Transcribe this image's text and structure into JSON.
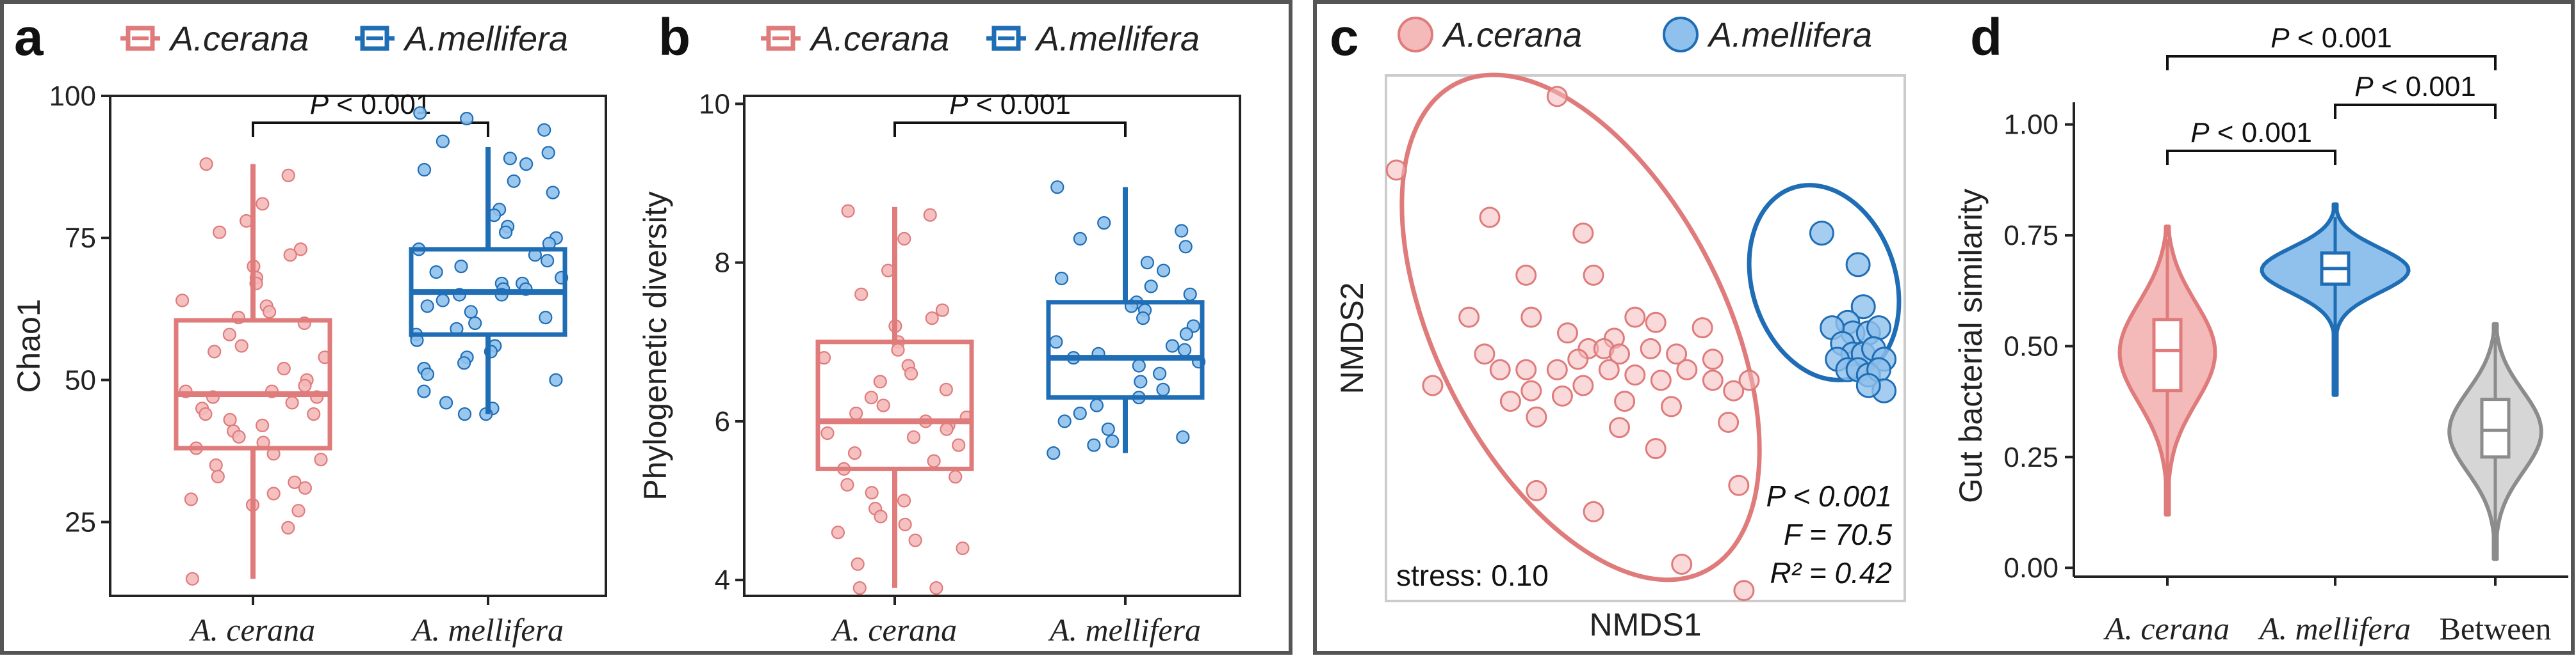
{
  "colors": {
    "cerana": "#e07b7b",
    "cerana_fill": "#f4b9b9",
    "mellifera": "#1f6db5",
    "mellifera_fill": "#8fc1ec",
    "between": "#8c8c8c",
    "between_fill": "#d6d6d6",
    "frame": "#555555"
  },
  "panels": {
    "a": {
      "label": "a"
    },
    "b": {
      "label": "b"
    },
    "c": {
      "label": "c"
    },
    "d": {
      "label": "d"
    }
  },
  "legend": {
    "cerana": "A.cerana",
    "mellifera": "A.mellifera"
  },
  "chart_data": [
    {
      "panel": "a",
      "type": "box",
      "ylabel": "Chao1",
      "categories": [
        "A. cerana",
        "A. mellifera"
      ],
      "ylim": [
        12,
        100
      ],
      "yticks": [
        25,
        50,
        75,
        100
      ],
      "significance": [
        "P < 0.001"
      ],
      "boxes": [
        {
          "name": "A.cerana",
          "whisker_low": 15,
          "q1": 38,
          "median": 47.5,
          "q3": 60.5,
          "whisker_high": 88
        },
        {
          "name": "A.mellifera",
          "whisker_low": 44,
          "q1": 58,
          "median": 65.5,
          "q3": 73,
          "whisker_high": 91
        }
      ],
      "points": [
        [
          88,
          86,
          81,
          78,
          76,
          73,
          72,
          70,
          68,
          67,
          64,
          63,
          62,
          61,
          60,
          58,
          56,
          55,
          54,
          52,
          50,
          49,
          48,
          48,
          47,
          47,
          46,
          45,
          44,
          44,
          43,
          42,
          41,
          40,
          39,
          38,
          37,
          36,
          35,
          33,
          32,
          31,
          30,
          29,
          28,
          27,
          24,
          15
        ],
        [
          97,
          96,
          94,
          92,
          90,
          89,
          88,
          87,
          85,
          83,
          80,
          79,
          77,
          76,
          75,
          74,
          73,
          72,
          71,
          70,
          69,
          68,
          67,
          67,
          66,
          66,
          65,
          65,
          64,
          63,
          62,
          61,
          60,
          59,
          58,
          57,
          56,
          55,
          54,
          53,
          52,
          51,
          50,
          48,
          46,
          45,
          44,
          44
        ]
      ]
    },
    {
      "panel": "b",
      "type": "box",
      "ylabel": "Phylogenetic diversity",
      "categories": [
        "A. cerana",
        "A. mellifera"
      ],
      "ylim": [
        3.8,
        10.1
      ],
      "yticks": [
        4,
        6,
        8,
        10
      ],
      "significance": [
        "P < 0.001"
      ],
      "boxes": [
        {
          "name": "A.cerana",
          "whisker_low": 3.9,
          "q1": 5.4,
          "median": 6.0,
          "q3": 7.0,
          "whisker_high": 8.7
        },
        {
          "name": "A.mellifera",
          "whisker_low": 5.6,
          "q1": 6.3,
          "median": 6.8,
          "q3": 7.5,
          "whisker_high": 8.95
        }
      ],
      "points": [
        [
          8.65,
          8.6,
          8.3,
          7.9,
          7.6,
          7.4,
          7.3,
          7.2,
          7.0,
          6.9,
          6.8,
          6.7,
          6.6,
          6.5,
          6.4,
          6.3,
          6.2,
          6.1,
          6.05,
          6.0,
          5.95,
          5.9,
          5.85,
          5.8,
          5.7,
          5.6,
          5.5,
          5.4,
          5.3,
          5.2,
          5.1,
          5.0,
          4.9,
          4.8,
          4.7,
          4.6,
          4.5,
          4.4,
          4.2,
          3.9,
          3.9
        ],
        [
          8.95,
          8.5,
          8.4,
          8.3,
          8.2,
          8.0,
          7.9,
          7.8,
          7.7,
          7.6,
          7.5,
          7.45,
          7.4,
          7.3,
          7.2,
          7.1,
          7.0,
          6.95,
          6.9,
          6.85,
          6.8,
          6.75,
          6.7,
          6.6,
          6.5,
          6.4,
          6.3,
          6.2,
          6.1,
          6.0,
          5.9,
          5.8,
          5.75,
          5.7,
          5.6
        ]
      ]
    },
    {
      "panel": "c",
      "type": "scatter",
      "xlabel": "NMDS1",
      "ylabel": "NMDS2",
      "xlim": [
        0,
        100
      ],
      "ylim": [
        0,
        100
      ],
      "annotations": {
        "stress": "stress: 0.10",
        "p": "P < 0.001",
        "f": "F = 70.5",
        "r2": "R² = 0.42"
      },
      "series": [
        {
          "name": "A.cerana",
          "points": [
            [
              2,
              82
            ],
            [
              33,
              96
            ],
            [
              20,
              73
            ],
            [
              38,
              70
            ],
            [
              27,
              62
            ],
            [
              40,
              62
            ],
            [
              28,
              54
            ],
            [
              16,
              54
            ],
            [
              35,
              51
            ],
            [
              44,
              50
            ],
            [
              48,
              54
            ],
            [
              52,
              53
            ],
            [
              39,
              48
            ],
            [
              42,
              48
            ],
            [
              45,
              47
            ],
            [
              51,
              48
            ],
            [
              56,
              47
            ],
            [
              61,
              52
            ],
            [
              63,
              46
            ],
            [
              19,
              47
            ],
            [
              22,
              44
            ],
            [
              27,
              44
            ],
            [
              33,
              44
            ],
            [
              37,
              46
            ],
            [
              43,
              44
            ],
            [
              48,
              43
            ],
            [
              53,
              42
            ],
            [
              58,
              44
            ],
            [
              63,
              42
            ],
            [
              67,
              40
            ],
            [
              70,
              42
            ],
            [
              28,
              40
            ],
            [
              34,
              39
            ],
            [
              38,
              41
            ],
            [
              46,
              38
            ],
            [
              55,
              37
            ],
            [
              29,
              35
            ],
            [
              24,
              38
            ],
            [
              66,
              34
            ],
            [
              52,
              29
            ],
            [
              45,
              33
            ],
            [
              29,
              21
            ],
            [
              40,
              17
            ],
            [
              68,
              22
            ],
            [
              57,
              7
            ],
            [
              69,
              2
            ],
            [
              9,
              41
            ]
          ]
        },
        {
          "name": "A.mellifera",
          "points": [
            [
              84,
              70
            ],
            [
              91,
              64
            ],
            [
              92,
              56
            ],
            [
              89,
              53
            ],
            [
              90,
              51
            ],
            [
              93,
              51
            ],
            [
              95,
              52
            ],
            [
              86,
              52
            ],
            [
              88,
              49
            ],
            [
              90,
              47
            ],
            [
              92,
              47
            ],
            [
              94,
              48
            ],
            [
              96,
              46
            ],
            [
              87,
              46
            ],
            [
              89,
              44
            ],
            [
              91,
              44
            ],
            [
              93,
              43
            ],
            [
              95,
              44
            ],
            [
              96,
              40
            ],
            [
              93,
              41
            ]
          ]
        }
      ]
    },
    {
      "panel": "d",
      "type": "violin",
      "ylabel": "Gut bacterial similarity",
      "categories": [
        "A. cerana",
        "A. mellifera",
        "Between"
      ],
      "ylim": [
        -0.02,
        1.05
      ],
      "yticks": [
        "0.00",
        "0.25",
        "0.50",
        "0.75",
        "1.00"
      ],
      "significance": [
        "P < 0.001",
        "P < 0.001",
        "P < 0.001"
      ],
      "series": [
        {
          "name": "A.cerana",
          "min": 0.12,
          "q1": 0.4,
          "median": 0.49,
          "q3": 0.56,
          "max": 0.77
        },
        {
          "name": "A.mellifera",
          "min": 0.39,
          "q1": 0.64,
          "median": 0.675,
          "q3": 0.71,
          "max": 0.82
        },
        {
          "name": "Between",
          "min": 0.02,
          "q1": 0.25,
          "median": 0.31,
          "q3": 0.38,
          "max": 0.55
        }
      ]
    }
  ]
}
